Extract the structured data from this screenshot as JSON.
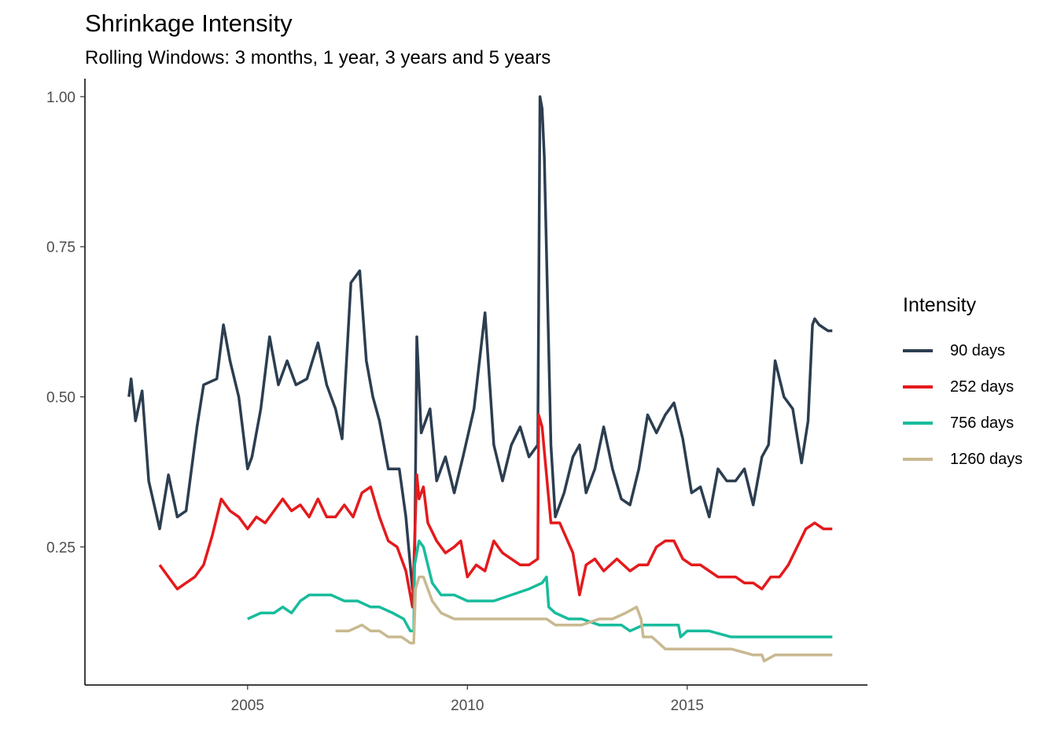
{
  "chart_data": {
    "type": "line",
    "title": "Shrinkage Intensity",
    "subtitle": "Rolling Windows: 3 months, 1 year, 3 years and 5 years",
    "xlabel": "",
    "ylabel": "",
    "xlim": [
      2001.3,
      2019.1
    ],
    "ylim": [
      0.02,
      1.03
    ],
    "x_ticks": [
      2005,
      2010,
      2015
    ],
    "x_tick_labels": [
      "2005",
      "2010",
      "2015"
    ],
    "y_ticks": [
      0.25,
      0.5,
      0.75,
      1.0
    ],
    "y_tick_labels": [
      "0.25",
      "0.50",
      "0.75",
      "1.00"
    ],
    "grid": false,
    "legend": {
      "title": "Intensity",
      "position": "right"
    },
    "series": [
      {
        "name": "90 days",
        "color": "#2c3e50",
        "points": [
          [
            2002.3,
            0.5
          ],
          [
            2002.35,
            0.53
          ],
          [
            2002.45,
            0.46
          ],
          [
            2002.6,
            0.51
          ],
          [
            2002.75,
            0.36
          ],
          [
            2003.0,
            0.28
          ],
          [
            2003.2,
            0.37
          ],
          [
            2003.4,
            0.3
          ],
          [
            2003.6,
            0.31
          ],
          [
            2003.85,
            0.45
          ],
          [
            2004.0,
            0.52
          ],
          [
            2004.3,
            0.53
          ],
          [
            2004.45,
            0.62
          ],
          [
            2004.6,
            0.56
          ],
          [
            2004.8,
            0.5
          ],
          [
            2005.0,
            0.38
          ],
          [
            2005.1,
            0.4
          ],
          [
            2005.3,
            0.48
          ],
          [
            2005.5,
            0.6
          ],
          [
            2005.7,
            0.52
          ],
          [
            2005.9,
            0.56
          ],
          [
            2006.1,
            0.52
          ],
          [
            2006.35,
            0.53
          ],
          [
            2006.6,
            0.59
          ],
          [
            2006.8,
            0.52
          ],
          [
            2007.0,
            0.48
          ],
          [
            2007.15,
            0.43
          ],
          [
            2007.35,
            0.69
          ],
          [
            2007.55,
            0.71
          ],
          [
            2007.7,
            0.56
          ],
          [
            2007.85,
            0.5
          ],
          [
            2008.0,
            0.46
          ],
          [
            2008.2,
            0.38
          ],
          [
            2008.45,
            0.38
          ],
          [
            2008.6,
            0.3
          ],
          [
            2008.75,
            0.18
          ],
          [
            2008.8,
            0.22
          ],
          [
            2008.85,
            0.6
          ],
          [
            2008.95,
            0.44
          ],
          [
            2009.15,
            0.48
          ],
          [
            2009.3,
            0.36
          ],
          [
            2009.5,
            0.4
          ],
          [
            2009.7,
            0.34
          ],
          [
            2009.9,
            0.4
          ],
          [
            2010.15,
            0.48
          ],
          [
            2010.4,
            0.64
          ],
          [
            2010.6,
            0.42
          ],
          [
            2010.8,
            0.36
          ],
          [
            2011.0,
            0.42
          ],
          [
            2011.2,
            0.45
          ],
          [
            2011.4,
            0.4
          ],
          [
            2011.6,
            0.42
          ],
          [
            2011.65,
            1.0
          ],
          [
            2011.7,
            0.98
          ],
          [
            2011.75,
            0.9
          ],
          [
            2011.9,
            0.42
          ],
          [
            2012.0,
            0.3
          ],
          [
            2012.2,
            0.34
          ],
          [
            2012.4,
            0.4
          ],
          [
            2012.55,
            0.42
          ],
          [
            2012.7,
            0.34
          ],
          [
            2012.9,
            0.38
          ],
          [
            2013.1,
            0.45
          ],
          [
            2013.3,
            0.38
          ],
          [
            2013.5,
            0.33
          ],
          [
            2013.7,
            0.32
          ],
          [
            2013.9,
            0.38
          ],
          [
            2014.1,
            0.47
          ],
          [
            2014.3,
            0.44
          ],
          [
            2014.5,
            0.47
          ],
          [
            2014.7,
            0.49
          ],
          [
            2014.9,
            0.43
          ],
          [
            2015.1,
            0.34
          ],
          [
            2015.3,
            0.35
          ],
          [
            2015.5,
            0.3
          ],
          [
            2015.7,
            0.38
          ],
          [
            2015.9,
            0.36
          ],
          [
            2016.1,
            0.36
          ],
          [
            2016.3,
            0.38
          ],
          [
            2016.5,
            0.32
          ],
          [
            2016.7,
            0.4
          ],
          [
            2016.85,
            0.42
          ],
          [
            2017.0,
            0.56
          ],
          [
            2017.2,
            0.5
          ],
          [
            2017.4,
            0.48
          ],
          [
            2017.6,
            0.39
          ],
          [
            2017.75,
            0.46
          ],
          [
            2017.85,
            0.62
          ],
          [
            2017.9,
            0.63
          ],
          [
            2018.0,
            0.62
          ],
          [
            2018.2,
            0.61
          ],
          [
            2018.3,
            0.61
          ]
        ]
      },
      {
        "name": "252 days",
        "color": "#e41a1c",
        "points": [
          [
            2003.0,
            0.22
          ],
          [
            2003.2,
            0.2
          ],
          [
            2003.4,
            0.18
          ],
          [
            2003.6,
            0.19
          ],
          [
            2003.8,
            0.2
          ],
          [
            2004.0,
            0.22
          ],
          [
            2004.2,
            0.27
          ],
          [
            2004.4,
            0.33
          ],
          [
            2004.6,
            0.31
          ],
          [
            2004.8,
            0.3
          ],
          [
            2005.0,
            0.28
          ],
          [
            2005.2,
            0.3
          ],
          [
            2005.4,
            0.29
          ],
          [
            2005.6,
            0.31
          ],
          [
            2005.8,
            0.33
          ],
          [
            2006.0,
            0.31
          ],
          [
            2006.2,
            0.32
          ],
          [
            2006.4,
            0.3
          ],
          [
            2006.6,
            0.33
          ],
          [
            2006.8,
            0.3
          ],
          [
            2007.0,
            0.3
          ],
          [
            2007.2,
            0.32
          ],
          [
            2007.4,
            0.3
          ],
          [
            2007.6,
            0.34
          ],
          [
            2007.8,
            0.35
          ],
          [
            2008.0,
            0.3
          ],
          [
            2008.2,
            0.26
          ],
          [
            2008.4,
            0.25
          ],
          [
            2008.6,
            0.21
          ],
          [
            2008.7,
            0.17
          ],
          [
            2008.75,
            0.15
          ],
          [
            2008.85,
            0.37
          ],
          [
            2008.9,
            0.33
          ],
          [
            2009.0,
            0.35
          ],
          [
            2009.1,
            0.29
          ],
          [
            2009.3,
            0.26
          ],
          [
            2009.5,
            0.24
          ],
          [
            2009.7,
            0.25
          ],
          [
            2009.85,
            0.26
          ],
          [
            2010.0,
            0.2
          ],
          [
            2010.2,
            0.22
          ],
          [
            2010.4,
            0.21
          ],
          [
            2010.6,
            0.26
          ],
          [
            2010.8,
            0.24
          ],
          [
            2011.0,
            0.23
          ],
          [
            2011.2,
            0.22
          ],
          [
            2011.4,
            0.22
          ],
          [
            2011.6,
            0.23
          ],
          [
            2011.62,
            0.47
          ],
          [
            2011.7,
            0.45
          ],
          [
            2011.9,
            0.29
          ],
          [
            2012.1,
            0.29
          ],
          [
            2012.4,
            0.24
          ],
          [
            2012.55,
            0.17
          ],
          [
            2012.7,
            0.22
          ],
          [
            2012.9,
            0.23
          ],
          [
            2013.1,
            0.21
          ],
          [
            2013.4,
            0.23
          ],
          [
            2013.7,
            0.21
          ],
          [
            2013.9,
            0.22
          ],
          [
            2014.1,
            0.22
          ],
          [
            2014.3,
            0.25
          ],
          [
            2014.5,
            0.26
          ],
          [
            2014.7,
            0.26
          ],
          [
            2014.9,
            0.23
          ],
          [
            2015.1,
            0.22
          ],
          [
            2015.3,
            0.22
          ],
          [
            2015.5,
            0.21
          ],
          [
            2015.7,
            0.2
          ],
          [
            2015.9,
            0.2
          ],
          [
            2016.1,
            0.2
          ],
          [
            2016.3,
            0.19
          ],
          [
            2016.5,
            0.19
          ],
          [
            2016.7,
            0.18
          ],
          [
            2016.9,
            0.2
          ],
          [
            2017.1,
            0.2
          ],
          [
            2017.3,
            0.22
          ],
          [
            2017.5,
            0.25
          ],
          [
            2017.7,
            0.28
          ],
          [
            2017.9,
            0.29
          ],
          [
            2018.1,
            0.28
          ],
          [
            2018.3,
            0.28
          ]
        ]
      },
      {
        "name": "756 days",
        "color": "#18bc9c",
        "points": [
          [
            2005.0,
            0.13
          ],
          [
            2005.3,
            0.14
          ],
          [
            2005.6,
            0.14
          ],
          [
            2005.8,
            0.15
          ],
          [
            2006.0,
            0.14
          ],
          [
            2006.2,
            0.16
          ],
          [
            2006.4,
            0.17
          ],
          [
            2006.6,
            0.17
          ],
          [
            2006.9,
            0.17
          ],
          [
            2007.2,
            0.16
          ],
          [
            2007.5,
            0.16
          ],
          [
            2007.8,
            0.15
          ],
          [
            2008.0,
            0.15
          ],
          [
            2008.3,
            0.14
          ],
          [
            2008.55,
            0.13
          ],
          [
            2008.7,
            0.11
          ],
          [
            2008.78,
            0.11
          ],
          [
            2008.8,
            0.22
          ],
          [
            2008.9,
            0.26
          ],
          [
            2009.0,
            0.25
          ],
          [
            2009.2,
            0.19
          ],
          [
            2009.4,
            0.17
          ],
          [
            2009.7,
            0.17
          ],
          [
            2010.0,
            0.16
          ],
          [
            2010.3,
            0.16
          ],
          [
            2010.6,
            0.16
          ],
          [
            2011.0,
            0.17
          ],
          [
            2011.4,
            0.18
          ],
          [
            2011.7,
            0.19
          ],
          [
            2011.8,
            0.2
          ],
          [
            2011.85,
            0.15
          ],
          [
            2012.0,
            0.14
          ],
          [
            2012.3,
            0.13
          ],
          [
            2012.6,
            0.13
          ],
          [
            2013.0,
            0.12
          ],
          [
            2013.3,
            0.12
          ],
          [
            2013.5,
            0.12
          ],
          [
            2013.7,
            0.11
          ],
          [
            2014.0,
            0.12
          ],
          [
            2014.5,
            0.12
          ],
          [
            2014.8,
            0.12
          ],
          [
            2014.85,
            0.1
          ],
          [
            2015.0,
            0.11
          ],
          [
            2015.5,
            0.11
          ],
          [
            2016.0,
            0.1
          ],
          [
            2016.5,
            0.1
          ],
          [
            2017.0,
            0.1
          ],
          [
            2017.5,
            0.1
          ],
          [
            2018.0,
            0.1
          ],
          [
            2018.3,
            0.1
          ]
        ]
      },
      {
        "name": "1260 days",
        "color": "#c9b991",
        "points": [
          [
            2007.0,
            0.11
          ],
          [
            2007.3,
            0.11
          ],
          [
            2007.6,
            0.12
          ],
          [
            2007.8,
            0.11
          ],
          [
            2008.0,
            0.11
          ],
          [
            2008.2,
            0.1
          ],
          [
            2008.5,
            0.1
          ],
          [
            2008.7,
            0.09
          ],
          [
            2008.78,
            0.09
          ],
          [
            2008.82,
            0.18
          ],
          [
            2008.9,
            0.2
          ],
          [
            2009.0,
            0.2
          ],
          [
            2009.2,
            0.16
          ],
          [
            2009.4,
            0.14
          ],
          [
            2009.7,
            0.13
          ],
          [
            2010.0,
            0.13
          ],
          [
            2010.5,
            0.13
          ],
          [
            2011.0,
            0.13
          ],
          [
            2011.5,
            0.13
          ],
          [
            2011.8,
            0.13
          ],
          [
            2012.0,
            0.12
          ],
          [
            2012.3,
            0.12
          ],
          [
            2012.6,
            0.12
          ],
          [
            2013.0,
            0.13
          ],
          [
            2013.3,
            0.13
          ],
          [
            2013.6,
            0.14
          ],
          [
            2013.85,
            0.15
          ],
          [
            2013.95,
            0.13
          ],
          [
            2014.0,
            0.1
          ],
          [
            2014.2,
            0.1
          ],
          [
            2014.5,
            0.08
          ],
          [
            2014.7,
            0.08
          ],
          [
            2015.0,
            0.08
          ],
          [
            2015.5,
            0.08
          ],
          [
            2016.0,
            0.08
          ],
          [
            2016.5,
            0.07
          ],
          [
            2016.7,
            0.07
          ],
          [
            2016.75,
            0.06
          ],
          [
            2017.0,
            0.07
          ],
          [
            2017.5,
            0.07
          ],
          [
            2018.0,
            0.07
          ],
          [
            2018.3,
            0.07
          ]
        ]
      }
    ]
  }
}
